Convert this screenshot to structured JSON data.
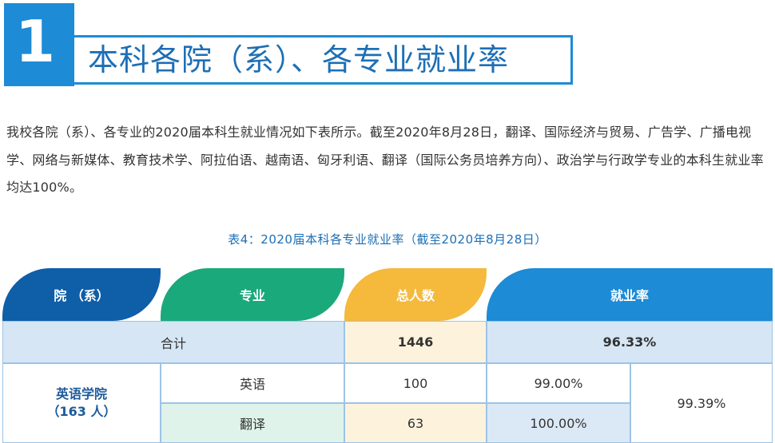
{
  "section": {
    "number": "1",
    "title": "本科各院（系）、各专业就业率"
  },
  "paragraph": "我校各院（系）、各专业的2020届本科生就业情况如下表所示。截至2020年8月28日，翻译、国际经济与贸易、广告学、广播电视学、网络与新媒体、教育技术学、阿拉伯语、越南语、匈牙利语、翻译（国际公务员培养方向）、政治学与行政学专业的本科生就业率均达100%。",
  "table": {
    "caption": "表4：2020届本科各专业就业率（截至2020年8月28日）",
    "headers": [
      "院 （系）",
      "专业",
      "总人数",
      "就业率"
    ],
    "total": {
      "label": "合计",
      "count": "1446",
      "rate": "96.33%"
    },
    "colleges": [
      {
        "name": "英语学院",
        "size": "（163 人）",
        "rate": "99.39%",
        "majors": [
          {
            "name": "英语",
            "count": "100",
            "rate": "99.00%"
          },
          {
            "name": "翻译",
            "count": "63",
            "rate": "100.00%"
          }
        ]
      }
    ]
  },
  "colors": {
    "accent": "#1d8bd6",
    "tab_college": "#0f5ea8",
    "tab_major": "#1aa97a",
    "tab_count": "#f5b93c",
    "tab_rate": "#1d8bd6"
  }
}
